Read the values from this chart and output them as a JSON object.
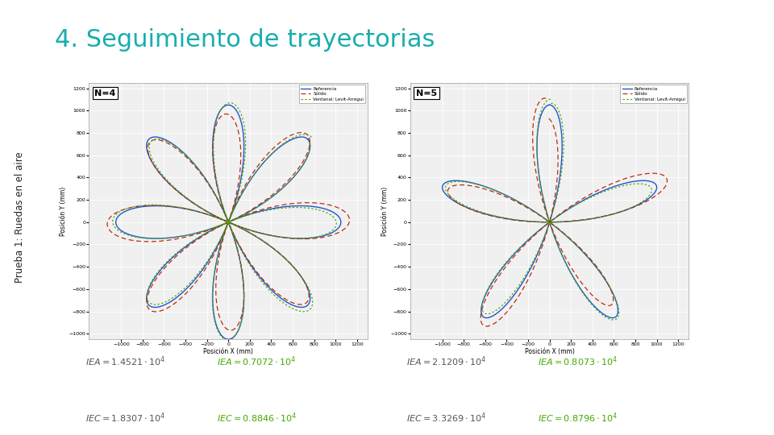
{
  "title": "4. Seguimiento de trayectorias",
  "title_color": "#1AADAD",
  "title_fontsize": 22,
  "sidebar_color": "#1AADAD",
  "sidebar_text": "Prueba 1: Ruedas en el aire",
  "sidebar_text_color": "#222222",
  "background_color": "#FFFFFF",
  "N4_label": "N=4",
  "N5_label": "N=5",
  "xlim": [
    -1300,
    1300
  ],
  "ylim": [
    -1050,
    1250
  ],
  "xlabel": "Posición X (mm)",
  "ylabel": "Posición Y (mm)",
  "xticks": [
    -1000,
    -800,
    -600,
    -400,
    -200,
    0,
    200,
    400,
    600,
    800,
    1000,
    1200
  ],
  "yticks": [
    -1000,
    -800,
    -600,
    -400,
    -200,
    0,
    200,
    400,
    600,
    800,
    1000,
    1200
  ],
  "ref_color": "#2255CC",
  "solid_color": "#BB2200",
  "ventral_color": "#44AA00",
  "legend_labels": [
    "Referencia",
    "Sólido",
    "Ventanal: Levit-Arregui"
  ],
  "amp": 1050,
  "formula_color_black": "#555555",
  "formula_color_green": "#44AA00"
}
